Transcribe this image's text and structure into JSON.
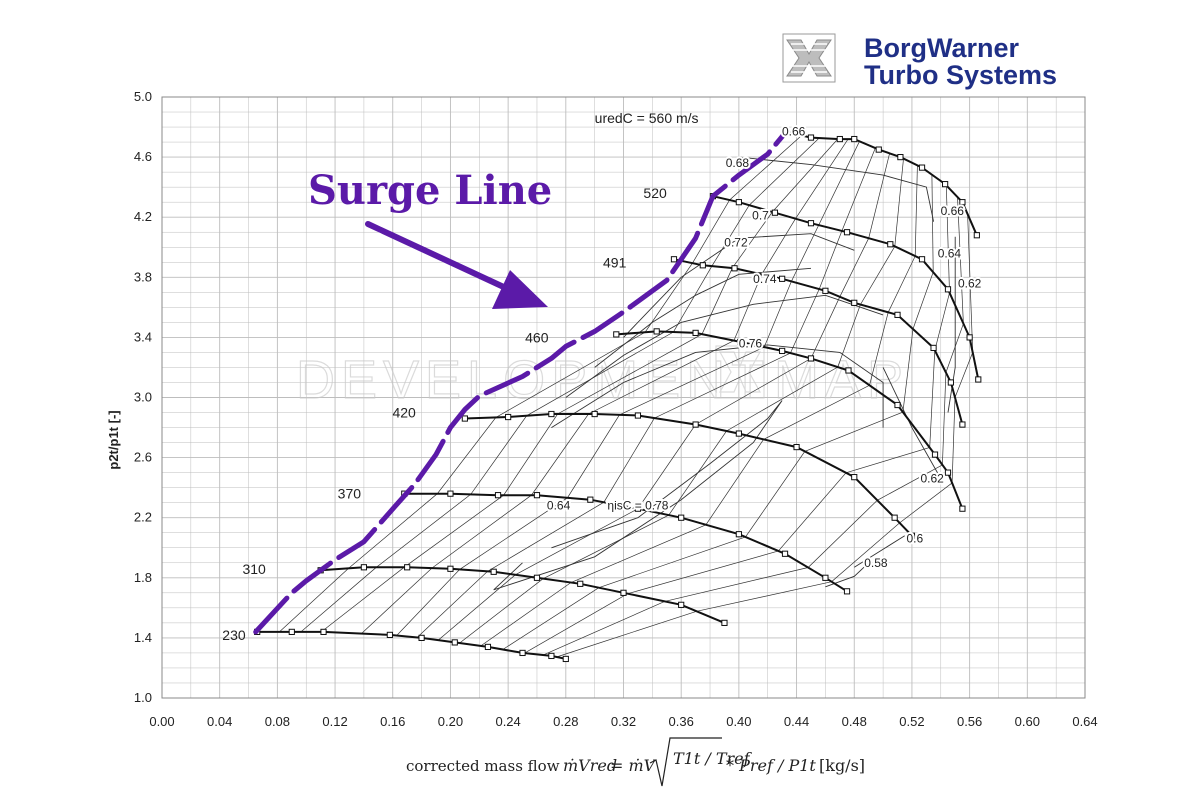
{
  "logo": {
    "line1": "BorgWarner",
    "line2": "Turbo Systems"
  },
  "watermark": {
    "left": "DEVELOPMENT",
    "right": "MAP"
  },
  "annotation": {
    "surge_line": "Surge Line"
  },
  "formula": {
    "label": "corrected mass flow",
    "lhs": "ṁVred",
    "rhs_main": "= ṁV",
    "sqrt_content": "T1t / Tref",
    "tail": "* Pref / P1t",
    "unit": "[kg/s]"
  },
  "colors": {
    "surge": "#5b1aa8",
    "grid": "#bdbdbd",
    "speed": "#111111",
    "eff": "#333333",
    "logo": "#1f2f86"
  },
  "chart_data": {
    "type": "line",
    "title": "",
    "xlabel": "corrected mass flow",
    "ylabel": "p2t/p1t [-]",
    "xlim": [
      0.0,
      0.64
    ],
    "ylim": [
      1.0,
      5.0
    ],
    "x_ticks": [
      "0.00",
      "0.04",
      "0.08",
      "0.12",
      "0.16",
      "0.20",
      "0.24",
      "0.28",
      "0.32",
      "0.36",
      "0.40",
      "0.44",
      "0.48",
      "0.52",
      "0.56",
      "0.60",
      "0.64"
    ],
    "y_ticks": [
      "1.0",
      "1.4",
      "1.8",
      "2.2",
      "2.6",
      "3.0",
      "3.4",
      "3.8",
      "4.2",
      "4.6",
      "5.0"
    ],
    "grid": true,
    "speed_lines": [
      {
        "label": "230",
        "points": [
          [
            0.066,
            1.44
          ],
          [
            0.09,
            1.44
          ],
          [
            0.112,
            1.44
          ],
          [
            0.158,
            1.42
          ],
          [
            0.18,
            1.4
          ],
          [
            0.203,
            1.37
          ],
          [
            0.226,
            1.34
          ],
          [
            0.25,
            1.3
          ],
          [
            0.27,
            1.28
          ],
          [
            0.28,
            1.26
          ]
        ]
      },
      {
        "label": "310",
        "points": [
          [
            0.11,
            1.85
          ],
          [
            0.14,
            1.87
          ],
          [
            0.17,
            1.87
          ],
          [
            0.2,
            1.86
          ],
          [
            0.23,
            1.84
          ],
          [
            0.26,
            1.8
          ],
          [
            0.29,
            1.76
          ],
          [
            0.32,
            1.7
          ],
          [
            0.36,
            1.62
          ],
          [
            0.39,
            1.5
          ]
        ]
      },
      {
        "label": "370",
        "points": [
          [
            0.168,
            2.36
          ],
          [
            0.2,
            2.36
          ],
          [
            0.233,
            2.35
          ],
          [
            0.26,
            2.35
          ],
          [
            0.297,
            2.32
          ],
          [
            0.33,
            2.26
          ],
          [
            0.36,
            2.2
          ],
          [
            0.4,
            2.09
          ],
          [
            0.432,
            1.96
          ],
          [
            0.46,
            1.8
          ],
          [
            0.475,
            1.71
          ]
        ]
      },
      {
        "label": "420",
        "points": [
          [
            0.21,
            2.86
          ],
          [
            0.24,
            2.87
          ],
          [
            0.27,
            2.89
          ],
          [
            0.3,
            2.89
          ],
          [
            0.33,
            2.88
          ],
          [
            0.37,
            2.82
          ],
          [
            0.4,
            2.76
          ],
          [
            0.44,
            2.67
          ],
          [
            0.48,
            2.47
          ],
          [
            0.508,
            2.2
          ],
          [
            0.52,
            2.08
          ]
        ]
      },
      {
        "label": "460",
        "points": [
          [
            0.315,
            3.42
          ],
          [
            0.343,
            3.44
          ],
          [
            0.37,
            3.43
          ],
          [
            0.401,
            3.37
          ],
          [
            0.43,
            3.31
          ],
          [
            0.45,
            3.26
          ],
          [
            0.476,
            3.18
          ],
          [
            0.51,
            2.95
          ],
          [
            0.536,
            2.62
          ],
          [
            0.545,
            2.5
          ],
          [
            0.555,
            2.26
          ]
        ]
      },
      {
        "label": "491",
        "points": [
          [
            0.355,
            3.92
          ],
          [
            0.375,
            3.88
          ],
          [
            0.397,
            3.86
          ],
          [
            0.43,
            3.79
          ],
          [
            0.46,
            3.71
          ],
          [
            0.48,
            3.63
          ],
          [
            0.51,
            3.55
          ],
          [
            0.535,
            3.33
          ],
          [
            0.547,
            3.1
          ],
          [
            0.555,
            2.82
          ]
        ]
      },
      {
        "label": "520",
        "points": [
          [
            0.382,
            4.34
          ],
          [
            0.4,
            4.3
          ],
          [
            0.425,
            4.23
          ],
          [
            0.45,
            4.16
          ],
          [
            0.475,
            4.1
          ],
          [
            0.505,
            4.02
          ],
          [
            0.527,
            3.92
          ],
          [
            0.545,
            3.72
          ],
          [
            0.56,
            3.4
          ],
          [
            0.566,
            3.12
          ]
        ]
      },
      {
        "label": "uredC = 560 m/s",
        "points": [
          [
            0.432,
            4.77
          ],
          [
            0.45,
            4.73
          ],
          [
            0.47,
            4.72
          ],
          [
            0.48,
            4.72
          ],
          [
            0.497,
            4.65
          ],
          [
            0.512,
            4.6
          ],
          [
            0.527,
            4.53
          ],
          [
            0.543,
            4.42
          ],
          [
            0.555,
            4.3
          ],
          [
            0.565,
            4.08
          ]
        ]
      }
    ],
    "surge_line": [
      [
        0.065,
        1.44
      ],
      [
        0.09,
        1.7
      ],
      [
        0.1,
        1.78
      ],
      [
        0.12,
        1.92
      ],
      [
        0.14,
        2.04
      ],
      [
        0.162,
        2.28
      ],
      [
        0.175,
        2.42
      ],
      [
        0.19,
        2.62
      ],
      [
        0.2,
        2.8
      ],
      [
        0.21,
        2.92
      ],
      [
        0.22,
        3.01
      ],
      [
        0.25,
        3.14
      ],
      [
        0.27,
        3.26
      ],
      [
        0.28,
        3.34
      ],
      [
        0.3,
        3.44
      ],
      [
        0.32,
        3.57
      ],
      [
        0.35,
        3.78
      ],
      [
        0.36,
        3.92
      ],
      [
        0.37,
        4.06
      ],
      [
        0.382,
        4.34
      ],
      [
        0.4,
        4.48
      ],
      [
        0.42,
        4.62
      ],
      [
        0.432,
        4.76
      ]
    ],
    "speed_label_positions": [
      [
        0.058,
        1.42
      ],
      [
        0.072,
        1.86
      ],
      [
        0.138,
        2.36
      ],
      [
        0.176,
        2.9
      ],
      [
        0.268,
        3.4
      ],
      [
        0.322,
        3.9
      ],
      [
        0.35,
        4.36
      ],
      [
        0.3,
        4.86
      ]
    ],
    "efficiency_labels": [
      "ηisC = 0.78",
      "0.76",
      "0.74",
      "0.72",
      "0.7",
      "0.68",
      "0.66",
      "0.64",
      "0.62",
      "0.6",
      "0.58"
    ],
    "efficiency_contours": [
      {
        "value": 0.58,
        "points": [
          [
            0.49,
            1.9
          ],
          [
            0.48,
            1.81
          ],
          [
            0.46,
            1.74
          ]
        ]
      },
      {
        "value": 0.6,
        "points": [
          [
            0.515,
            2.08
          ],
          [
            0.5,
            1.99
          ],
          [
            0.48,
            1.87
          ]
        ]
      },
      {
        "value": 0.62,
        "points": [
          [
            0.5,
            3.2
          ],
          [
            0.52,
            2.8
          ],
          [
            0.54,
            2.46
          ]
        ]
      },
      {
        "value": 0.64,
        "points": [
          [
            0.55,
            4.07
          ],
          [
            0.55,
            3.7
          ],
          [
            0.55,
            3.2
          ],
          [
            0.545,
            2.9
          ]
        ]
      },
      {
        "value": 0.66,
        "points": [
          [
            0.4,
            4.6
          ],
          [
            0.45,
            4.55
          ],
          [
            0.5,
            4.48
          ],
          [
            0.53,
            4.4
          ],
          [
            0.535,
            4.17
          ]
        ]
      },
      {
        "value": 0.7,
        "points": [
          [
            0.32,
            3.4
          ],
          [
            0.34,
            3.6
          ],
          [
            0.36,
            3.8
          ],
          [
            0.4,
            4.06
          ],
          [
            0.45,
            4.09
          ],
          [
            0.48,
            3.98
          ]
        ]
      },
      {
        "value": 0.72,
        "points": [
          [
            0.3,
            3.2
          ],
          [
            0.34,
            3.5
          ],
          [
            0.37,
            3.68
          ],
          [
            0.4,
            3.82
          ],
          [
            0.45,
            3.86
          ]
        ]
      },
      {
        "value": 0.74,
        "points": [
          [
            0.28,
            3.0
          ],
          [
            0.32,
            3.28
          ],
          [
            0.36,
            3.5
          ],
          [
            0.41,
            3.62
          ],
          [
            0.46,
            3.68
          ],
          [
            0.5,
            3.55
          ]
        ]
      },
      {
        "value": 0.76,
        "points": [
          [
            0.27,
            2.8
          ],
          [
            0.32,
            3.1
          ],
          [
            0.37,
            3.3
          ],
          [
            0.42,
            3.35
          ],
          [
            0.47,
            3.3
          ],
          [
            0.5,
            3.1
          ],
          [
            0.5,
            2.8
          ]
        ]
      },
      {
        "value": 0.78,
        "points": [
          [
            0.27,
            2.0
          ],
          [
            0.3,
            2.1
          ],
          [
            0.33,
            2.2
          ],
          [
            0.38,
            2.56
          ],
          [
            0.42,
            2.86
          ],
          [
            0.43,
            2.98
          ],
          [
            0.41,
            2.7
          ],
          [
            0.36,
            2.32
          ],
          [
            0.3,
            1.94
          ],
          [
            0.23,
            1.72
          ],
          [
            0.25,
            1.9
          ]
        ]
      }
    ],
    "efficiency_label_positions": [
      [
        0.33,
        2.28
      ],
      [
        0.408,
        3.36
      ],
      [
        0.418,
        3.79
      ],
      [
        0.398,
        4.03
      ],
      [
        0.415,
        4.21
      ],
      [
        0.399,
        4.56
      ],
      [
        0.438,
        4.77
      ],
      [
        0.275,
        2.28
      ],
      [
        0.548,
        4.24
      ],
      [
        0.546,
        3.96
      ],
      [
        0.56,
        3.76
      ],
      [
        0.534,
        2.46
      ],
      [
        0.522,
        2.06
      ],
      [
        0.495,
        1.9
      ]
    ]
  }
}
